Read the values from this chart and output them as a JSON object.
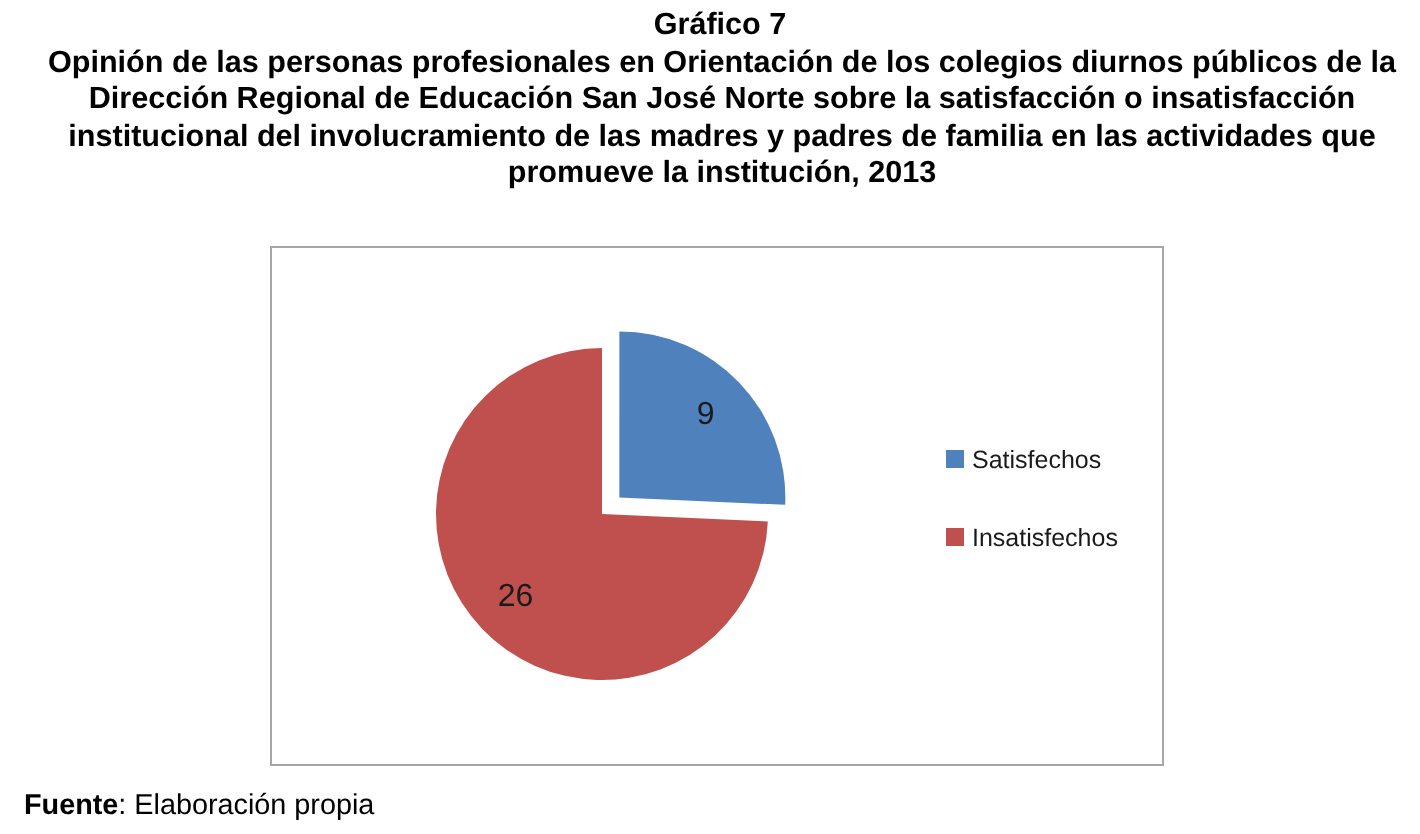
{
  "chart_data": {
    "type": "pie",
    "title": "Gráfico 7",
    "subtitle": "Opinión de las personas profesionales en Orientación de los colegios diurnos públicos de la Dirección Regional de Educación San José Norte sobre la satisfacción o insatisfacción institucional del involucramiento de las madres y padres de familia en las actividades que promueve la institución, 2013",
    "categories": [
      "Satisfechos",
      "Insatisfechos"
    ],
    "values": [
      9,
      26
    ],
    "colors": [
      "#4f81bd",
      "#c0504d"
    ],
    "data_labels": true,
    "legend": "right",
    "annotations": [
      "Fuente: Elaboración propia"
    ]
  }
}
